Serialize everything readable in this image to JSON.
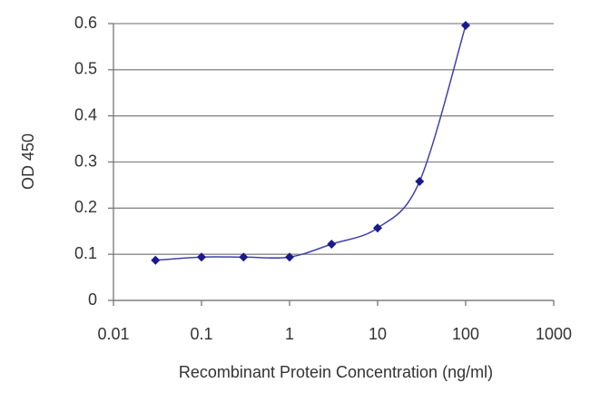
{
  "chart_data": {
    "type": "line",
    "xlabel": "Recombinant Protein Concentration (ng/ml)",
    "ylabel": "OD 450",
    "xscale": "log",
    "x": [
      0.03,
      0.1,
      0.3,
      1,
      3,
      10,
      30,
      100
    ],
    "series": [
      {
        "color": "#1a1a8c",
        "values": [
          0.087,
          0.094,
          0.094,
          0.094,
          0.122,
          0.157,
          0.258,
          0.596
        ]
      }
    ],
    "xlim": [
      0.01,
      1000
    ],
    "xticks": [
      0.01,
      0.1,
      1,
      10,
      100,
      1000
    ],
    "ylim": [
      0,
      0.6
    ],
    "yticks": [
      0,
      0.1,
      0.2,
      0.3,
      0.4,
      0.5,
      0.6
    ],
    "grid": true
  }
}
